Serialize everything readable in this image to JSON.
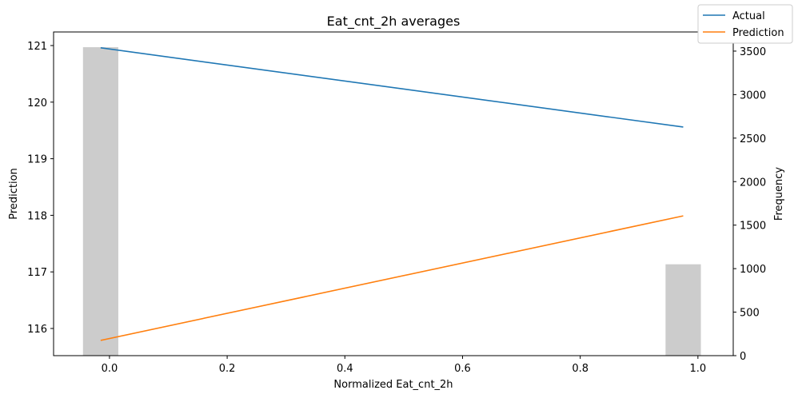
{
  "chart_data": {
    "type": "line",
    "title": "Eat_cnt_2h averages",
    "xlabel": "Normalized Eat_cnt_2h",
    "ylabel": "Prediction",
    "y2label": "Frequency",
    "xlim": [
      -0.095,
      1.06
    ],
    "ylim": [
      115.52,
      121.24
    ],
    "y2lim": [
      0,
      3720
    ],
    "x_ticks": [
      0.0,
      0.2,
      0.4,
      0.6,
      0.8,
      1.0
    ],
    "x_tick_labels": [
      "0.0",
      "0.2",
      "0.4",
      "0.6",
      "0.8",
      "1.0"
    ],
    "y_ticks": [
      116,
      117,
      118,
      119,
      120,
      121
    ],
    "y_tick_labels": [
      "116",
      "117",
      "118",
      "119",
      "120",
      "121"
    ],
    "y2_ticks": [
      0,
      500,
      1000,
      1500,
      2000,
      2500,
      3000,
      3500
    ],
    "y2_tick_labels": [
      "0",
      "500",
      "1000",
      "1500",
      "2000",
      "2500",
      "3000",
      "3500"
    ],
    "grid": false,
    "legend_position": "top-right",
    "series": [
      {
        "name": "Actual",
        "color": "#1f77b4",
        "x": [
          -0.015,
          0.975
        ],
        "y": [
          120.96,
          119.56
        ]
      },
      {
        "name": "Prediction",
        "color": "#ff7f0e",
        "x": [
          -0.015,
          0.975
        ],
        "y": [
          115.79,
          117.99
        ]
      }
    ],
    "histogram": {
      "color": "#cccccc",
      "bins": [
        {
          "x0": -0.045,
          "x1": 0.015,
          "count": 3545
        },
        {
          "x0": 0.945,
          "x1": 1.005,
          "count": 1050
        }
      ]
    }
  }
}
